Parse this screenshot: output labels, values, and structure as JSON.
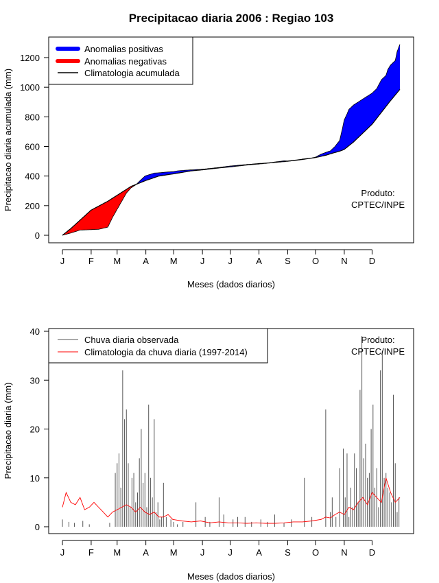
{
  "title": "Precipitacao diaria 2006 : Regiao 103",
  "chart_data": [
    {
      "type": "area",
      "ylabel": "Precipitacao diaria acumulada (mm)",
      "xlabel": "Meses (dados diarios)",
      "months": [
        "J",
        "F",
        "M",
        "A",
        "M",
        "J",
        "J",
        "A",
        "S",
        "O",
        "N",
        "D"
      ],
      "ylim": [
        0,
        1300
      ],
      "yticks": [
        0,
        200,
        400,
        600,
        800,
        1000,
        1200
      ],
      "legend": {
        "position": "top-left",
        "items": [
          {
            "label": "Anomalias positivas",
            "color": "#0000ff"
          },
          {
            "label": "Anomalias negativas",
            "color": "#ff0000"
          },
          {
            "label": "Climatologia acumulada",
            "color": "#000000"
          }
        ]
      },
      "annotation": [
        "Produto:",
        "CPTEC/INPE"
      ],
      "climatology_cumulative": {
        "day": [
          1,
          10,
          32,
          50,
          60,
          75,
          91,
          105,
          121,
          140,
          152,
          170,
          182,
          200,
          213,
          230,
          244,
          260,
          274,
          285,
          290,
          300,
          305,
          315,
          320,
          335,
          345,
          355,
          365
        ],
        "value": [
          0,
          45,
          170,
          230,
          270,
          330,
          370,
          400,
          415,
          435,
          442,
          455,
          462,
          475,
          482,
          492,
          500,
          512,
          525,
          540,
          550,
          568,
          580,
          630,
          660,
          750,
          830,
          910,
          985
        ]
      },
      "observed_cumulative": {
        "day": [
          1,
          10,
          20,
          32,
          40,
          50,
          55,
          60,
          65,
          70,
          75,
          80,
          85,
          90,
          95,
          100,
          105,
          110,
          115,
          121,
          125,
          135,
          150,
          170,
          182,
          200,
          213,
          225,
          230,
          240,
          244,
          255,
          260,
          270,
          274,
          280,
          285,
          290,
          295,
          300,
          303,
          305,
          308,
          310,
          315,
          320,
          325,
          330,
          335,
          340,
          345,
          350,
          352,
          355,
          360,
          362,
          365
        ],
        "value": [
          0,
          15,
          35,
          38,
          40,
          55,
          120,
          175,
          230,
          285,
          320,
          340,
          370,
          400,
          410,
          420,
          422,
          425,
          428,
          430,
          435,
          440,
          445,
          458,
          468,
          478,
          485,
          490,
          495,
          503,
          502,
          510,
          515,
          522,
          528,
          548,
          560,
          570,
          600,
          640,
          720,
          780,
          820,
          850,
          880,
          900,
          920,
          940,
          960,
          990,
          1050,
          1080,
          1120,
          1150,
          1180,
          1240,
          1290
        ]
      }
    },
    {
      "type": "bar",
      "ylabel": "Precipitacao diaria (mm)",
      "xlabel": "Meses (dados diarios)",
      "months": [
        "J",
        "F",
        "M",
        "A",
        "M",
        "J",
        "J",
        "A",
        "S",
        "O",
        "N",
        "D"
      ],
      "ylim": [
        0,
        40
      ],
      "yticks": [
        0,
        10,
        20,
        30,
        40
      ],
      "legend": {
        "position": "top-left",
        "items": [
          {
            "label": "Chuva diaria observada",
            "color": "#555555"
          },
          {
            "label": "Climatologia da chuva diaria (1997-2014)",
            "color": "#ff0000"
          }
        ]
      },
      "annotation": [
        "Produto:",
        "CPTEC/INPE"
      ],
      "observed_daily": {
        "day": [
          1,
          8,
          14,
          23,
          30,
          52,
          58,
          60,
          62,
          64,
          66,
          68,
          70,
          72,
          74,
          76,
          78,
          80,
          82,
          84,
          86,
          88,
          90,
          92,
          94,
          96,
          98,
          100,
          102,
          104,
          106,
          108,
          110,
          113,
          118,
          121,
          125,
          131,
          145,
          155,
          160,
          170,
          175,
          185,
          190,
          198,
          205,
          215,
          222,
          230,
          240,
          248,
          262,
          270,
          285,
          290,
          292,
          296,
          300,
          304,
          306,
          308,
          310,
          312,
          314,
          316,
          318,
          320,
          322,
          324,
          326,
          328,
          330,
          332,
          334,
          336,
          338,
          340,
          342,
          344,
          346,
          348,
          350,
          352,
          354,
          356,
          358,
          360,
          362,
          364
        ],
        "value": [
          1.5,
          1.0,
          0.8,
          1.2,
          0.5,
          0.8,
          11,
          13,
          15,
          8,
          32,
          22,
          24,
          13,
          4,
          10,
          11,
          5,
          7,
          14,
          20,
          9,
          11,
          4,
          25,
          10,
          6,
          22,
          3,
          5,
          1.5,
          2,
          9,
          2,
          1.5,
          1,
          0.5,
          1,
          5,
          2,
          1,
          6,
          2.5,
          1.5,
          2,
          2,
          1,
          1.5,
          1,
          2.5,
          0.8,
          1.5,
          10,
          2,
          24,
          3,
          6,
          2,
          12,
          16,
          6,
          15,
          2,
          8,
          4,
          15,
          12,
          5,
          28,
          39,
          14,
          17,
          10,
          11,
          20,
          25,
          8,
          12,
          4,
          32,
          36,
          10,
          11,
          8,
          7,
          5,
          27,
          13,
          3,
          6
        ]
      },
      "climatology_daily": {
        "day": [
          1,
          5,
          10,
          15,
          20,
          25,
          30,
          35,
          40,
          45,
          50,
          55,
          60,
          65,
          70,
          75,
          80,
          85,
          90,
          95,
          100,
          105,
          110,
          115,
          120,
          130,
          140,
          150,
          160,
          170,
          180,
          190,
          200,
          210,
          220,
          230,
          240,
          250,
          260,
          270,
          280,
          285,
          290,
          295,
          300,
          305,
          310,
          315,
          320,
          325,
          330,
          335,
          340,
          345,
          350,
          355,
          360,
          365
        ],
        "value": [
          4,
          7,
          5,
          4.5,
          6,
          3.5,
          4,
          5,
          4,
          3,
          2,
          3,
          3.5,
          4,
          4.5,
          4,
          3,
          4,
          3,
          2.5,
          3,
          2,
          2,
          2.5,
          1.5,
          1.2,
          1,
          1.2,
          0.8,
          1,
          0.8,
          0.8,
          0.7,
          0.8,
          0.7,
          0.7,
          0.8,
          1,
          1,
          1.2,
          1.5,
          2,
          1.8,
          2.5,
          3,
          2.5,
          4,
          3.5,
          5,
          6,
          4.5,
          7,
          6,
          5,
          10,
          7,
          5,
          6
        ]
      }
    }
  ]
}
